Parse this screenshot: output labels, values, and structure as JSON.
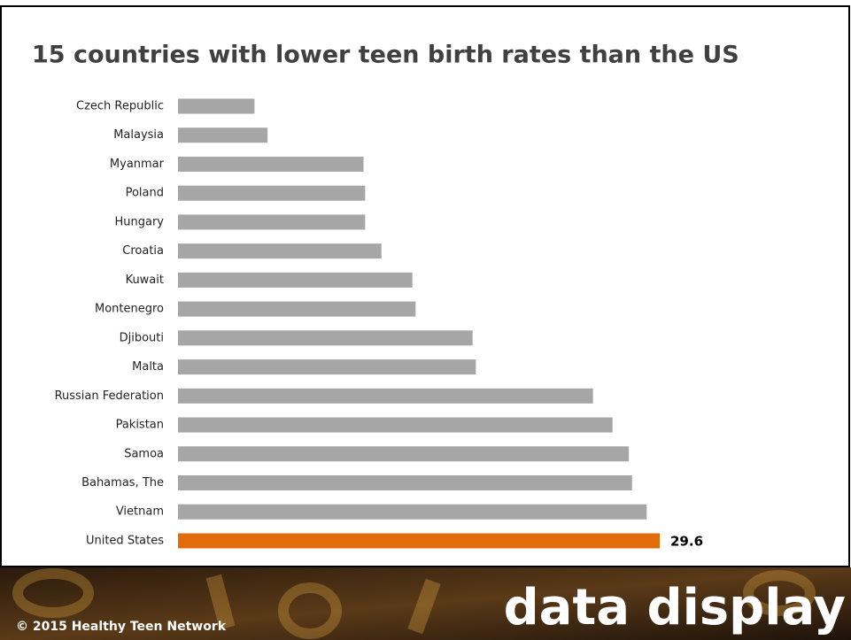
{
  "chart_data": {
    "type": "bar",
    "orientation": "horizontal",
    "title": "15 countries with lower teen birth rates than the US",
    "categories": [
      "Czech Republic",
      "Malaysia",
      "Myanmar",
      "Poland",
      "Hungary",
      "Croatia",
      "Kuwait",
      "Montenegro",
      "Djibouti",
      "Malta",
      "Russian Federation",
      "Pakistan",
      "Samoa",
      "Bahamas, The",
      "Vietnam",
      "United States"
    ],
    "values": [
      4.7,
      5.5,
      11.4,
      11.5,
      11.5,
      12.5,
      14.4,
      14.6,
      18.1,
      18.3,
      25.5,
      26.7,
      27.7,
      27.9,
      28.8,
      29.6
    ],
    "value_labels": [
      null,
      null,
      null,
      null,
      null,
      null,
      null,
      null,
      null,
      null,
      null,
      null,
      null,
      null,
      null,
      "29.6"
    ],
    "colors": [
      "#a6a6a6",
      "#a6a6a6",
      "#a6a6a6",
      "#a6a6a6",
      "#a6a6a6",
      "#a6a6a6",
      "#a6a6a6",
      "#a6a6a6",
      "#a6a6a6",
      "#a6a6a6",
      "#a6a6a6",
      "#a6a6a6",
      "#a6a6a6",
      "#a6a6a6",
      "#a6a6a6",
      "#e36c0a"
    ]
  },
  "footer": {
    "copyright": "© 2015 Healthy Teen Network",
    "tagline": "data display"
  }
}
